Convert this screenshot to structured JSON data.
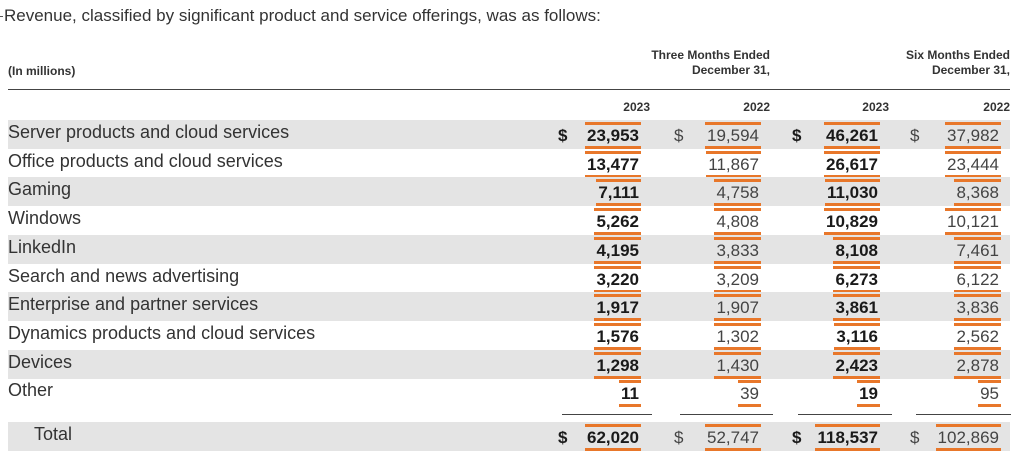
{
  "intro": "Revenue, classified by significant product and service offerings, was as follows:",
  "units_label": "(In millions)",
  "group_headers": [
    {
      "line1": "Three Months Ended",
      "line2": "December 31,"
    },
    {
      "line1": "Six Months Ended",
      "line2": "December 31,"
    }
  ],
  "years": [
    "2023",
    "2022",
    "2023",
    "2022"
  ],
  "currency_symbol": "$",
  "highlight_color": "#e8772a",
  "rows": [
    {
      "label": "Server products and cloud services",
      "values": [
        "23,953",
        "19,594",
        "46,261",
        "37,982"
      ]
    },
    {
      "label": "Office products and cloud services",
      "values": [
        "13,477",
        "11,867",
        "26,617",
        "23,444"
      ]
    },
    {
      "label": "Gaming",
      "values": [
        "7,111",
        "4,758",
        "11,030",
        "8,368"
      ]
    },
    {
      "label": "Windows",
      "values": [
        "5,262",
        "4,808",
        "10,829",
        "10,121"
      ]
    },
    {
      "label": "LinkedIn",
      "values": [
        "4,195",
        "3,833",
        "8,108",
        "7,461"
      ]
    },
    {
      "label": "Search and news advertising",
      "values": [
        "3,220",
        "3,209",
        "6,273",
        "6,122"
      ]
    },
    {
      "label": "Enterprise and partner services",
      "values": [
        "1,917",
        "1,907",
        "3,861",
        "3,836"
      ]
    },
    {
      "label": "Dynamics products and cloud services",
      "values": [
        "1,576",
        "1,302",
        "3,116",
        "2,562"
      ]
    },
    {
      "label": "Devices",
      "values": [
        "1,298",
        "1,430",
        "2,423",
        "2,878"
      ]
    },
    {
      "label": "Other",
      "values": [
        "11",
        "39",
        "19",
        "95"
      ]
    }
  ],
  "total": {
    "label": "Total",
    "values": [
      "62,020",
      "52,747",
      "118,537",
      "102,869"
    ]
  }
}
